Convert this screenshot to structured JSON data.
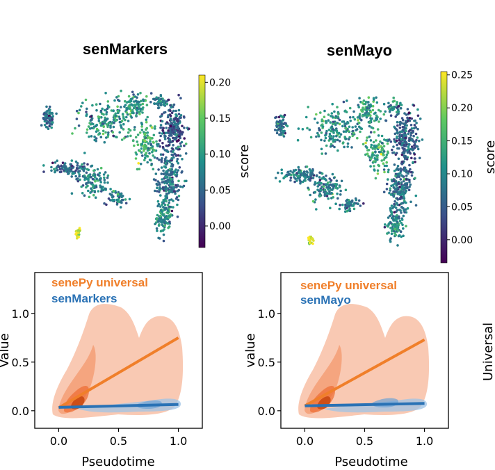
{
  "chart_data": [
    {
      "type": "scatter",
      "title": "senMarkers",
      "colorbar_label": "score",
      "colorbar_ticks": [
        "0.00",
        "0.05",
        "0.10",
        "0.15",
        "0.20"
      ],
      "color_range": [
        -0.03,
        0.21
      ],
      "colormap": "viridis"
    },
    {
      "type": "scatter",
      "title": "senMayo",
      "colorbar_label": "score",
      "colorbar_ticks": [
        "0.00",
        "0.05",
        "0.10",
        "0.15",
        "0.20",
        "0.25"
      ],
      "color_range": [
        -0.035,
        0.255
      ],
      "colormap": "viridis"
    },
    {
      "type": "line",
      "xlabel": "Pseudotime",
      "ylabel": "Value",
      "xlim": [
        -0.2,
        1.2
      ],
      "ylim": [
        -0.18,
        1.42
      ],
      "xticks": [
        "0.0",
        "0.5",
        "1.0"
      ],
      "yticks": [
        "0.0",
        "0.5",
        "1.0"
      ],
      "legend_position": "top-left",
      "series": [
        {
          "name": "senePy universal",
          "color": "#f07f2a",
          "x": [
            0.0,
            1.0
          ],
          "y": [
            0.03,
            0.75
          ]
        },
        {
          "name": "senMarkers",
          "color": "#2a72b5",
          "x": [
            0.0,
            1.0
          ],
          "y": [
            0.035,
            0.065
          ]
        }
      ]
    },
    {
      "type": "line",
      "xlabel": "Pseudotime",
      "ylabel": "value",
      "xlim": [
        -0.2,
        1.2
      ],
      "ylim": [
        -0.18,
        1.42
      ],
      "xticks": [
        "0.0",
        "0.5",
        "1.0"
      ],
      "yticks": [
        "0.0",
        "0.5",
        "1.0"
      ],
      "legend_position": "top-left",
      "series": [
        {
          "name": "senePy universal",
          "color": "#f07f2a",
          "x": [
            0.0,
            1.0
          ],
          "y": [
            0.05,
            0.73
          ]
        },
        {
          "name": "senMayo",
          "color": "#2a72b5",
          "x": [
            0.0,
            1.0
          ],
          "y": [
            0.05,
            0.075
          ]
        }
      ]
    }
  ],
  "edge_label": "Universal"
}
